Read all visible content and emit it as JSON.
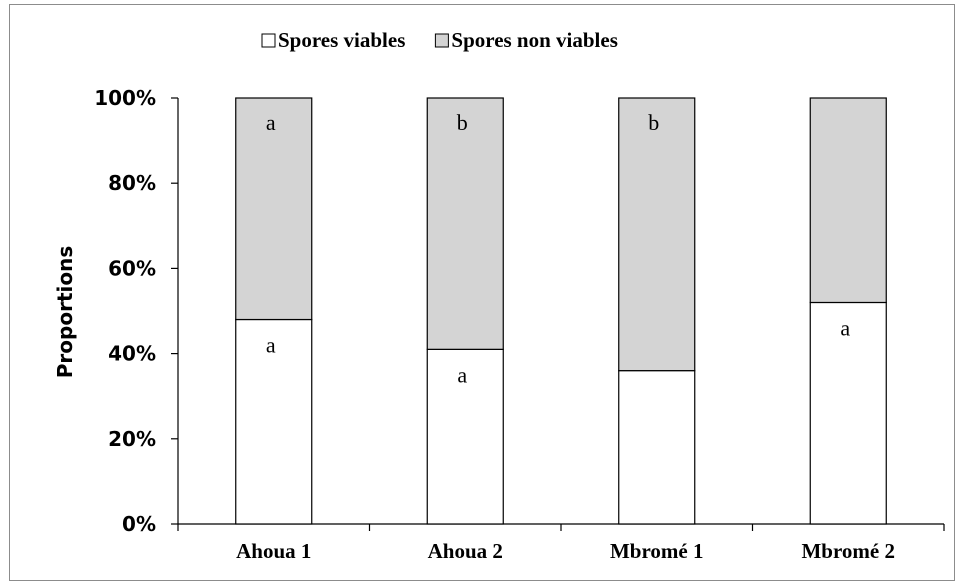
{
  "chart_data": {
    "type": "bar",
    "stacked": true,
    "categories": [
      "Ahoua 1",
      "Ahoua 2",
      "Mbromé 1",
      "Mbromé 2"
    ],
    "series": [
      {
        "name": "Spores viables",
        "values": [
          48,
          41,
          36,
          52
        ],
        "color": "#ffffff"
      },
      {
        "name": "Spores non viables",
        "values": [
          52,
          59,
          64,
          48
        ],
        "color": "#d4d4d4"
      }
    ],
    "annotations": {
      "viable": [
        "a",
        "a",
        "",
        "a"
      ],
      "non_viable": [
        "a",
        "b",
        "b",
        ""
      ]
    },
    "ylabel": "Proportions",
    "xlabel": "",
    "ylim": [
      0,
      100
    ],
    "yticks": [
      "0%",
      "20%",
      "40%",
      "60%",
      "80%",
      "100%"
    ],
    "legend_position": "top",
    "grid": false
  }
}
